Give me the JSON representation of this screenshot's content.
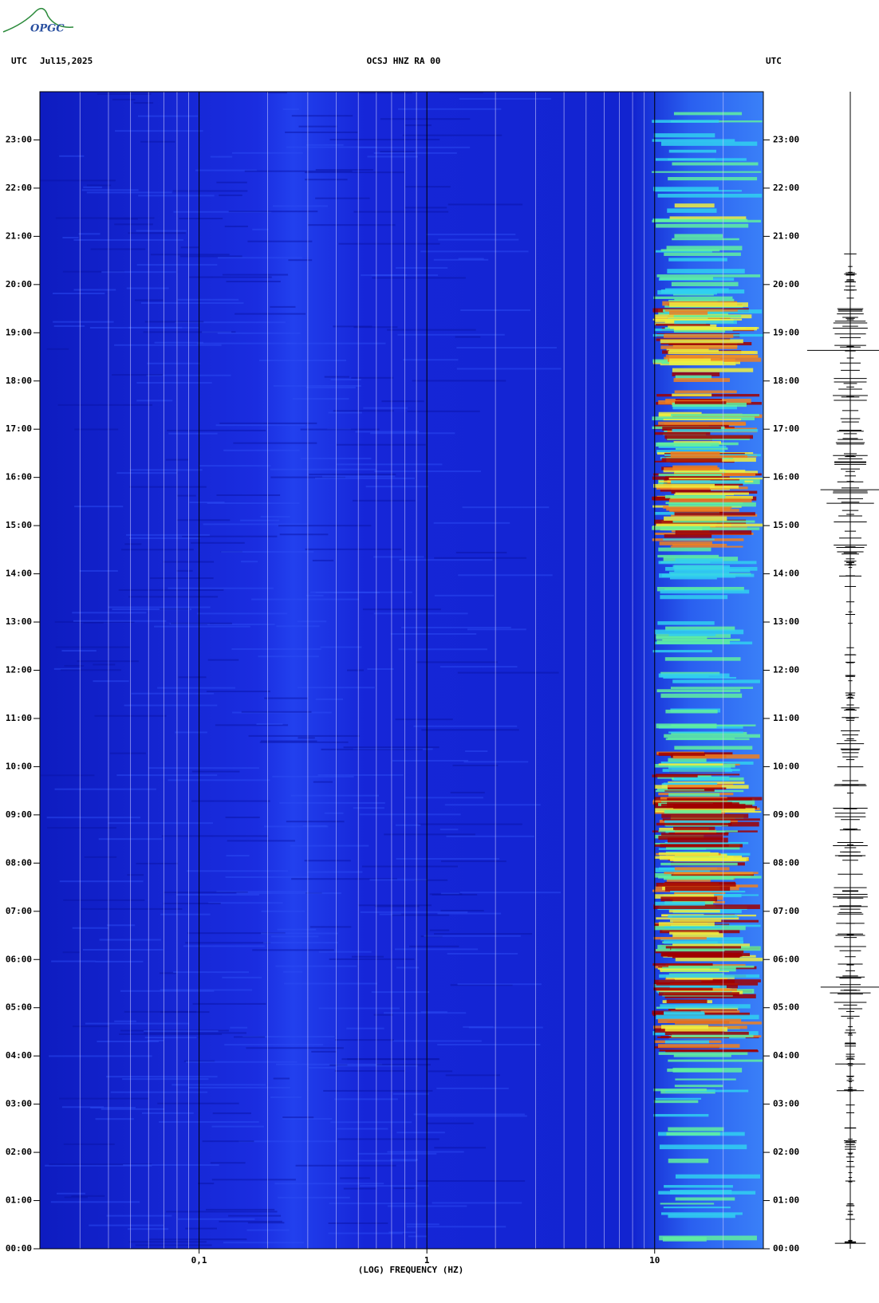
{
  "logo": "OPGC",
  "chart_data": {
    "type": "spectrogram",
    "title": "OCSJ HNZ RA 00",
    "subtitle": "Jul15,2025",
    "left_unit": "UTC",
    "right_unit": "UTC",
    "x_label": "(LOG) FREQUENCY (HZ)",
    "x_log": true,
    "xlim": [
      0.02,
      30
    ],
    "xticks": [
      {
        "value": 0.1,
        "label": "0,1"
      },
      1,
      10
    ],
    "minor_xticks": [
      0.03,
      0.04,
      0.05,
      0.06,
      0.07,
      0.08,
      0.09,
      0.2,
      0.3,
      0.4,
      0.5,
      0.6,
      0.7,
      0.8,
      0.9,
      2,
      3,
      4,
      5,
      6,
      7,
      8,
      9,
      20
    ],
    "ylim": [
      0,
      24
    ],
    "yticks": [
      {
        "value": 0,
        "label": "00:00"
      },
      {
        "value": 1,
        "label": "01:00"
      },
      {
        "value": 2,
        "label": "02:00"
      },
      {
        "value": 3,
        "label": "03:00"
      },
      {
        "value": 4,
        "label": "04:00"
      },
      {
        "value": 5,
        "label": "05:00"
      },
      {
        "value": 6,
        "label": "06:00"
      },
      {
        "value": 7,
        "label": "07:00"
      },
      {
        "value": 8,
        "label": "08:00"
      },
      {
        "value": 9,
        "label": "09:00"
      },
      {
        "value": 10,
        "label": "10:00"
      },
      {
        "value": 11,
        "label": "11:00"
      },
      {
        "value": 12,
        "label": "12:00"
      },
      {
        "value": 13,
        "label": "13:00"
      },
      {
        "value": 14,
        "label": "14:00"
      },
      {
        "value": 15,
        "label": "15:00"
      },
      {
        "value": 16,
        "label": "16:00"
      },
      {
        "value": 17,
        "label": "17:00"
      },
      {
        "value": 18,
        "label": "18:00"
      },
      {
        "value": 19,
        "label": "19:00"
      },
      {
        "value": 20,
        "label": "20:00"
      },
      {
        "value": 21,
        "label": "21:00"
      },
      {
        "value": 22,
        "label": "22:00"
      },
      {
        "value": 23,
        "label": "23:00"
      }
    ]
  }
}
